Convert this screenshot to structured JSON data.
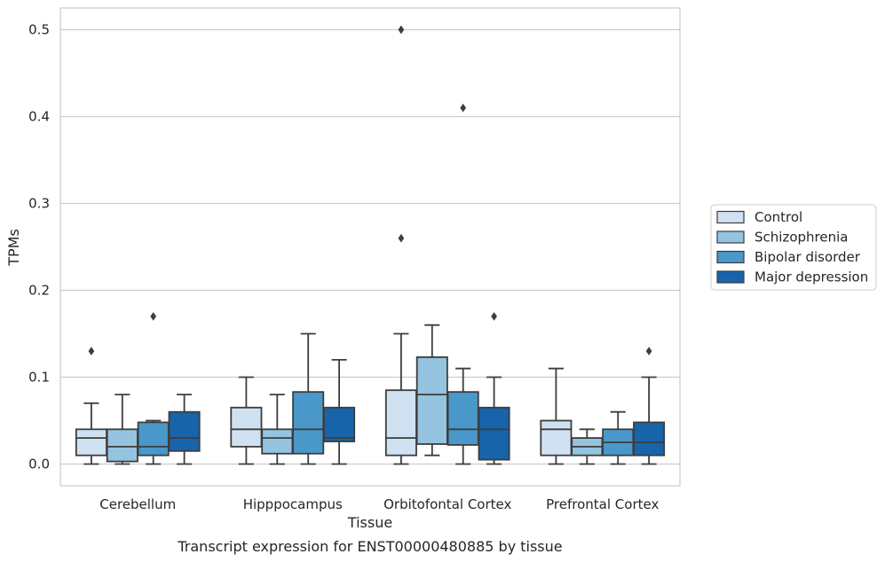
{
  "chart_data": {
    "type": "box",
    "caption": "Transcript expression for ENST00000480885 by tissue",
    "xlabel": "Tissue",
    "ylabel": "TPMs",
    "ylim": [
      -0.025,
      0.525
    ],
    "yticks": [
      "0.0",
      "0.1",
      "0.2",
      "0.3",
      "0.4",
      "0.5"
    ],
    "ytick_values": [
      0.0,
      0.1,
      0.2,
      0.3,
      0.4,
      0.5
    ],
    "grid": true,
    "legend_position": "right",
    "categories": [
      "Cerebellum",
      "Hipppocampus",
      "Orbitofontal Cortex",
      "Prefrontal Cortex"
    ],
    "series": [
      {
        "name": "Control",
        "color": "#d0e1f2",
        "boxes": [
          {
            "whislo": 0.0,
            "q1": 0.01,
            "med": 0.03,
            "q3": 0.04,
            "whishi": 0.07,
            "fliers": [
              0.13
            ]
          },
          {
            "whislo": 0.0,
            "q1": 0.02,
            "med": 0.04,
            "q3": 0.065,
            "whishi": 0.1,
            "fliers": []
          },
          {
            "whislo": 0.0,
            "q1": 0.01,
            "med": 0.03,
            "q3": 0.085,
            "whishi": 0.15,
            "fliers": [
              0.26,
              0.5
            ]
          },
          {
            "whislo": 0.0,
            "q1": 0.01,
            "med": 0.04,
            "q3": 0.05,
            "whishi": 0.11,
            "fliers": []
          }
        ]
      },
      {
        "name": "Schizophrenia",
        "color": "#94c4df",
        "boxes": [
          {
            "whislo": 0.0,
            "q1": 0.003,
            "med": 0.02,
            "q3": 0.04,
            "whishi": 0.08,
            "fliers": []
          },
          {
            "whislo": 0.0,
            "q1": 0.012,
            "med": 0.03,
            "q3": 0.04,
            "whishi": 0.08,
            "fliers": []
          },
          {
            "whislo": 0.01,
            "q1": 0.023,
            "med": 0.08,
            "q3": 0.123,
            "whishi": 0.16,
            "fliers": []
          },
          {
            "whislo": 0.0,
            "q1": 0.01,
            "med": 0.02,
            "q3": 0.03,
            "whishi": 0.04,
            "fliers": []
          }
        ]
      },
      {
        "name": "Bipolar disorder",
        "color": "#4a98c9",
        "boxes": [
          {
            "whislo": 0.0,
            "q1": 0.01,
            "med": 0.02,
            "q3": 0.048,
            "whishi": 0.05,
            "fliers": [
              0.17
            ]
          },
          {
            "whislo": 0.0,
            "q1": 0.012,
            "med": 0.04,
            "q3": 0.083,
            "whishi": 0.15,
            "fliers": []
          },
          {
            "whislo": 0.0,
            "q1": 0.022,
            "med": 0.04,
            "q3": 0.083,
            "whishi": 0.11,
            "fliers": [
              0.41
            ]
          },
          {
            "whislo": 0.0,
            "q1": 0.01,
            "med": 0.025,
            "q3": 0.04,
            "whishi": 0.06,
            "fliers": []
          }
        ]
      },
      {
        "name": "Major depression",
        "color": "#1764ab",
        "boxes": [
          {
            "whislo": 0.0,
            "q1": 0.015,
            "med": 0.03,
            "q3": 0.06,
            "whishi": 0.08,
            "fliers": []
          },
          {
            "whislo": 0.0,
            "q1": 0.026,
            "med": 0.03,
            "q3": 0.065,
            "whishi": 0.12,
            "fliers": []
          },
          {
            "whislo": 0.0,
            "q1": 0.005,
            "med": 0.04,
            "q3": 0.065,
            "whishi": 0.1,
            "fliers": [
              0.17
            ]
          },
          {
            "whislo": 0.0,
            "q1": 0.01,
            "med": 0.025,
            "q3": 0.048,
            "whishi": 0.1,
            "fliers": [
              0.13
            ]
          }
        ]
      }
    ]
  }
}
